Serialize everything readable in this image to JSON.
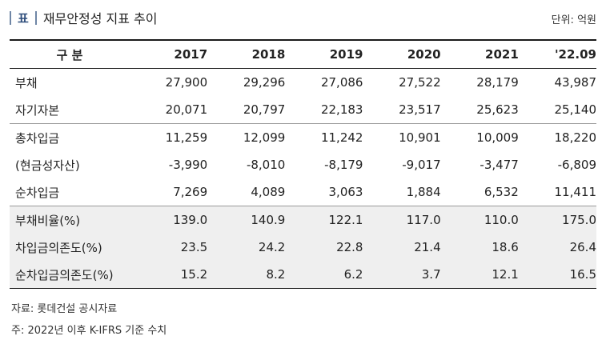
{
  "title": {
    "tag": "표",
    "text": "재무안정성 지표 추이",
    "unit": "단위: 억원"
  },
  "table": {
    "row_header": "구 분",
    "years": [
      "2017",
      "2018",
      "2019",
      "2020",
      "2021",
      "'22.09"
    ],
    "groups": [
      {
        "rows": [
          {
            "label": "부채",
            "values": [
              "27,900",
              "29,296",
              "27,086",
              "27,522",
              "28,179",
              "43,987"
            ]
          },
          {
            "label": "자기자본",
            "values": [
              "20,071",
              "20,797",
              "22,183",
              "23,517",
              "25,623",
              "25,140"
            ]
          }
        ]
      },
      {
        "rows": [
          {
            "label": "총차입금",
            "values": [
              "11,259",
              "12,099",
              "11,242",
              "10,901",
              "10,009",
              "18,220"
            ]
          },
          {
            "label": "(현금성자산)",
            "values": [
              "-3,990",
              "-8,010",
              "-8,179",
              "-9,017",
              "-3,477",
              "-6,809"
            ]
          },
          {
            "label": "순차입금",
            "values": [
              "7,269",
              "4,089",
              "3,063",
              "1,884",
              "6,532",
              "11,411"
            ]
          }
        ]
      },
      {
        "shaded": true,
        "rows": [
          {
            "label": "부채비율(%)",
            "values": [
              "139.0",
              "140.9",
              "122.1",
              "117.0",
              "110.0",
              "175.0"
            ]
          },
          {
            "label": "차입금의존도(%)",
            "values": [
              "23.5",
              "24.2",
              "22.8",
              "21.4",
              "18.6",
              "26.4"
            ]
          },
          {
            "label": "순차입금의존도(%)",
            "values": [
              "15.2",
              "8.2",
              "6.2",
              "3.7",
              "12.1",
              "16.5"
            ]
          }
        ]
      }
    ]
  },
  "notes": {
    "source": "자료: 롯데건설 공시자료",
    "footnote": "주: 2022년 이후 K-IFRS 기준 수치"
  }
}
